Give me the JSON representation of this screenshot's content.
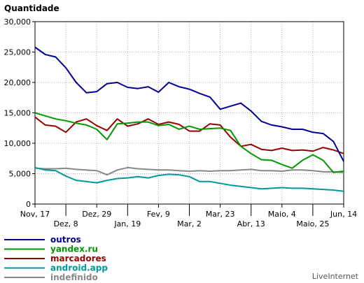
{
  "chart_data": {
    "type": "line",
    "title": "",
    "ylabel": "Quantidade",
    "xlabel": "",
    "ylim": [
      0,
      30000
    ],
    "yticks": [
      0,
      5000,
      10000,
      15000,
      20000,
      25000,
      30000
    ],
    "ytick_labels": [
      "0",
      "5,000",
      "10,000",
      "15,000",
      "20,000",
      "25,000",
      "30,000"
    ],
    "xticks": [
      {
        "index": 0,
        "label": "Nov, 17",
        "row": 1
      },
      {
        "index": 3,
        "label": "Dez, 8",
        "row": 2
      },
      {
        "index": 6,
        "label": "Dez, 29",
        "row": 1
      },
      {
        "index": 9,
        "label": "Jan, 19",
        "row": 2
      },
      {
        "index": 12,
        "label": "Fev, 9",
        "row": 1
      },
      {
        "index": 15,
        "label": "Mar, 2",
        "row": 2
      },
      {
        "index": 18,
        "label": "Mar, 23",
        "row": 1
      },
      {
        "index": 21,
        "label": "Abr, 13",
        "row": 2
      },
      {
        "index": 24,
        "label": "Maio, 4",
        "row": 1
      },
      {
        "index": 27,
        "label": "Maio, 25",
        "row": 2
      },
      {
        "index": 30,
        "label": "Jun, 14",
        "row": 1
      }
    ],
    "num_points": 31,
    "grid": true,
    "legend_position": "bottom-left",
    "series": [
      {
        "name": "outros",
        "color": "#000099",
        "values": [
          25800,
          24600,
          24200,
          22400,
          20000,
          18300,
          18500,
          19800,
          20000,
          19200,
          19000,
          19300,
          18400,
          20000,
          19300,
          18900,
          18200,
          17600,
          15600,
          16100,
          16600,
          15300,
          13600,
          13000,
          12700,
          12300,
          12300,
          11800,
          11600,
          10300,
          7000
        ]
      },
      {
        "name": "yandex.ru",
        "color": "#009900",
        "values": [
          15000,
          14500,
          14000,
          13700,
          13300,
          13000,
          12300,
          10600,
          13200,
          13300,
          13500,
          13500,
          12900,
          13100,
          12300,
          12800,
          12300,
          12400,
          12500,
          12100,
          9500,
          8300,
          7300,
          7200,
          6500,
          5900,
          7200,
          8100,
          7200,
          5200,
          5400
        ]
      },
      {
        "name": "marcadores",
        "color": "#990000",
        "values": [
          14300,
          13000,
          12800,
          11800,
          13500,
          14000,
          12900,
          12100,
          14000,
          12800,
          13200,
          14000,
          13100,
          13500,
          13100,
          12000,
          12000,
          13200,
          13000,
          11000,
          9500,
          9800,
          9000,
          8800,
          9200,
          8800,
          8900,
          8700,
          9300,
          8900,
          8300
        ]
      },
      {
        "name": "android.app",
        "color": "#009999",
        "values": [
          6000,
          5600,
          5500,
          4600,
          3900,
          3700,
          3500,
          3900,
          4200,
          4300,
          4500,
          4300,
          4700,
          4900,
          4800,
          4500,
          3700,
          3700,
          3400,
          3100,
          2900,
          2700,
          2500,
          2600,
          2700,
          2600,
          2600,
          2500,
          2400,
          2300,
          2100
        ]
      },
      {
        "name": "indefinido",
        "color": "#888888",
        "values": [
          5900,
          5800,
          5800,
          5900,
          5700,
          5600,
          5500,
          4800,
          5600,
          6000,
          5800,
          5700,
          5600,
          5600,
          5500,
          5400,
          5500,
          5400,
          5500,
          5500,
          5600,
          5700,
          5500,
          5500,
          5400,
          5600,
          5600,
          5500,
          5300,
          5300,
          5200
        ]
      }
    ]
  },
  "credit": "LiveInternet"
}
